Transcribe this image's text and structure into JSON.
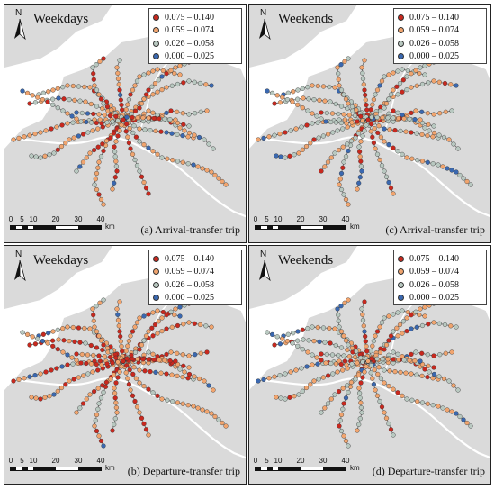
{
  "panels": [
    {
      "title": "Weekdays",
      "caption": "(a) Arrival-transfer trip",
      "dist": [
        0.18,
        0.46,
        0.28,
        0.08
      ]
    },
    {
      "title": "Weekends",
      "caption": "(c) Arrival-transfer trip",
      "dist": [
        0.08,
        0.36,
        0.46,
        0.1
      ]
    },
    {
      "title": "Weekdays",
      "caption": "(b) Departure-transfer trip",
      "dist": [
        0.3,
        0.52,
        0.12,
        0.06
      ]
    },
    {
      "title": "Weekends",
      "caption": "(d) Departure-transfer trip",
      "dist": [
        0.12,
        0.42,
        0.38,
        0.08
      ]
    }
  ],
  "north_label": "N",
  "legend": [
    {
      "label": "0.075 – 0.140",
      "color": "#c8281e"
    },
    {
      "label": "0.059 – 0.074",
      "color": "#f0a46e"
    },
    {
      "label": "0.026 – 0.058",
      "color": "#b8c8c0"
    },
    {
      "label": "0.000 – 0.025",
      "color": "#3a68b0"
    }
  ],
  "scale": {
    "ticks": [
      "0",
      "5",
      "10",
      "20",
      "30",
      "40"
    ],
    "unit": "km"
  },
  "colors": {
    "land": "#dadada",
    "water": "#ffffff",
    "line": "#555555"
  }
}
